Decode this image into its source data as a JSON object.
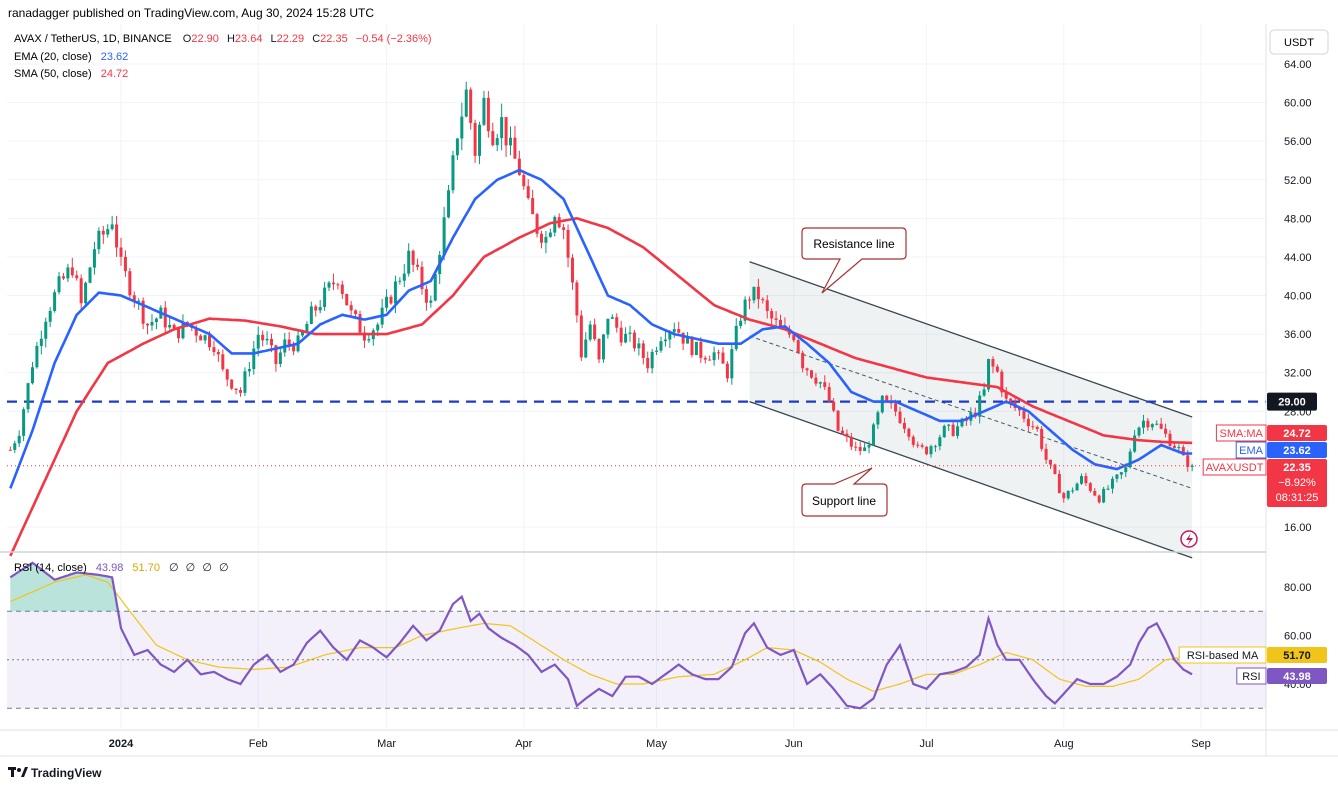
{
  "header": {
    "published": "ranadagger published on TradingView.com, Aug 30, 2024 15:28 UTC",
    "symbol": "AVAX / TetherUS, 1D, BINANCE",
    "ohlc": [
      {
        "k": "O",
        "v": "22.90"
      },
      {
        "k": "H",
        "v": "23.64"
      },
      {
        "k": "L",
        "v": "22.29"
      },
      {
        "k": "C",
        "v": "22.35"
      }
    ],
    "change": "−0.54 (−2.36%)",
    "ema_label": "EMA (20, close)",
    "ema_value": "23.62",
    "sma_label": "SMA (50, close)",
    "sma_value": "24.72",
    "currency": "USDT"
  },
  "rsi_legend": {
    "label": "RSI (14, close)",
    "value": "43.98",
    "ma_value": "51.70",
    "extras": [
      "∅",
      "∅",
      "∅",
      "∅"
    ]
  },
  "annotations": {
    "resistance": "Resistance line",
    "support": "Support line"
  },
  "price_tags": [
    {
      "label": "SMA:MA",
      "value": "24.72",
      "color": "#f23645"
    },
    {
      "label": "EMA",
      "value": "23.62",
      "color": "#2962ff"
    },
    {
      "label": "AVAXUSDT",
      "value": "22.35",
      "color": "#f23645",
      "extra1": "−8.92%",
      "extra2": "08:31:25"
    }
  ],
  "level_tag": {
    "value": "29.00",
    "color": "#131722"
  },
  "rsi_tags": [
    {
      "label": "RSI-based MA",
      "value": "51.70"
    },
    {
      "label": "RSI",
      "value": "43.98"
    }
  ],
  "footer": {
    "brand": "TradingView"
  },
  "colors": {
    "up": "#089981",
    "down": "#f23645",
    "ema": "#2962ff",
    "sma": "#f23645",
    "rsi": "#7e57c2",
    "rsi_ma": "#f0c419",
    "level": "#1e3ac8",
    "channel": "#37474f"
  },
  "chart_data": {
    "type": "candlestick",
    "symbol": "AVAXUSDT",
    "price_axis": {
      "ticks": [
        64,
        60,
        56,
        52,
        48,
        44,
        40,
        36,
        32,
        28,
        16
      ],
      "tick_labels": [
        "64.00",
        "60.00",
        "56.00",
        "52.00",
        "48.00",
        "44.00",
        "40.00",
        "36.00",
        "32.00",
        "28.00",
        "16.00"
      ],
      "range": [
        13,
        66
      ]
    },
    "time_axis": {
      "labels": [
        "2024",
        "Feb",
        "Mar",
        "Apr",
        "May",
        "Jun",
        "Jul",
        "Aug",
        "Sep"
      ],
      "label_day_index": [
        0,
        31,
        60,
        91,
        121,
        152,
        182,
        213,
        244
      ],
      "first_day_index": -25,
      "last_day_index": 272,
      "last_candle_day_index": 242
    },
    "candles_approx_close_keypoints": [
      [
        -25,
        24
      ],
      [
        -23,
        26
      ],
      [
        -20,
        33
      ],
      [
        -17,
        38
      ],
      [
        -14,
        41
      ],
      [
        -11,
        43
      ],
      [
        -9,
        39
      ],
      [
        -6,
        45
      ],
      [
        -3,
        47
      ],
      [
        -2,
        48
      ],
      [
        0,
        43
      ],
      [
        3,
        40
      ],
      [
        6,
        37
      ],
      [
        9,
        38
      ],
      [
        12,
        36
      ],
      [
        15,
        37
      ],
      [
        18,
        36
      ],
      [
        21,
        35
      ],
      [
        23,
        32
      ],
      [
        25,
        31
      ],
      [
        27,
        30
      ],
      [
        29,
        33
      ],
      [
        31,
        36
      ],
      [
        33,
        35
      ],
      [
        35,
        33
      ],
      [
        37,
        35
      ],
      [
        40,
        35
      ],
      [
        43,
        38
      ],
      [
        46,
        40
      ],
      [
        49,
        42
      ],
      [
        52,
        38
      ],
      [
        55,
        36
      ],
      [
        58,
        37
      ],
      [
        62,
        41
      ],
      [
        65,
        44
      ],
      [
        68,
        41
      ],
      [
        70,
        39
      ],
      [
        72,
        45
      ],
      [
        74,
        50
      ],
      [
        76,
        57
      ],
      [
        78,
        61
      ],
      [
        80,
        55
      ],
      [
        82,
        60
      ],
      [
        84,
        57
      ],
      [
        86,
        58
      ],
      [
        88,
        55
      ],
      [
        90,
        53
      ],
      [
        92,
        49
      ],
      [
        94,
        47
      ],
      [
        96,
        46
      ],
      [
        98,
        49
      ],
      [
        100,
        47
      ],
      [
        101,
        44
      ],
      [
        103,
        38
      ],
      [
        104,
        34
      ],
      [
        106,
        37
      ],
      [
        108,
        33
      ],
      [
        110,
        38
      ],
      [
        113,
        36
      ],
      [
        116,
        35
      ],
      [
        119,
        33
      ],
      [
        122,
        36
      ],
      [
        125,
        37
      ],
      [
        128,
        35
      ],
      [
        131,
        34
      ],
      [
        134,
        34
      ],
      [
        137,
        32
      ],
      [
        140,
        38
      ],
      [
        142,
        40
      ],
      [
        144,
        40
      ],
      [
        146,
        38
      ],
      [
        148,
        37
      ],
      [
        150,
        36
      ],
      [
        152,
        36
      ],
      [
        154,
        33
      ],
      [
        156,
        32
      ],
      [
        158,
        31
      ],
      [
        160,
        29
      ],
      [
        162,
        26
      ],
      [
        164,
        25
      ],
      [
        166,
        24
      ],
      [
        168,
        24
      ],
      [
        170,
        26
      ],
      [
        172,
        29
      ],
      [
        175,
        28
      ],
      [
        178,
        26
      ],
      [
        180,
        24
      ],
      [
        182,
        24
      ],
      [
        184,
        25
      ],
      [
        186,
        26
      ],
      [
        188,
        26
      ],
      [
        191,
        27
      ],
      [
        193,
        28
      ],
      [
        195,
        30
      ],
      [
        196,
        33
      ],
      [
        198,
        32
      ],
      [
        200,
        29
      ],
      [
        203,
        28
      ],
      [
        205,
        27
      ],
      [
        207,
        26
      ],
      [
        209,
        23
      ],
      [
        211,
        21
      ],
      [
        213,
        19
      ],
      [
        215,
        20
      ],
      [
        217,
        21
      ],
      [
        219,
        20
      ],
      [
        221,
        19
      ],
      [
        223,
        20
      ],
      [
        225,
        21
      ],
      [
        227,
        22
      ],
      [
        229,
        26
      ],
      [
        231,
        27
      ],
      [
        233,
        27
      ],
      [
        235,
        26
      ],
      [
        237,
        25
      ],
      [
        239,
        24
      ],
      [
        240,
        23
      ],
      [
        242,
        22.35
      ]
    ],
    "ema20_keypoints": [
      [
        -25,
        20
      ],
      [
        -20,
        26
      ],
      [
        -15,
        33
      ],
      [
        -10,
        38
      ],
      [
        -5,
        40.3
      ],
      [
        0,
        40
      ],
      [
        5,
        39
      ],
      [
        10,
        38
      ],
      [
        15,
        37
      ],
      [
        20,
        36
      ],
      [
        25,
        34
      ],
      [
        30,
        34
      ],
      [
        35,
        34.5
      ],
      [
        40,
        35
      ],
      [
        45,
        37
      ],
      [
        50,
        38
      ],
      [
        55,
        37.5
      ],
      [
        60,
        38
      ],
      [
        65,
        40.5
      ],
      [
        70,
        41.5
      ],
      [
        75,
        46
      ],
      [
        80,
        50
      ],
      [
        85,
        52
      ],
      [
        90,
        53
      ],
      [
        95,
        52
      ],
      [
        100,
        50
      ],
      [
        105,
        45
      ],
      [
        110,
        40
      ],
      [
        115,
        39
      ],
      [
        120,
        37
      ],
      [
        125,
        36
      ],
      [
        130,
        35.5
      ],
      [
        135,
        35
      ],
      [
        140,
        35
      ],
      [
        145,
        36.5
      ],
      [
        150,
        36.8
      ],
      [
        155,
        35
      ],
      [
        160,
        33
      ],
      [
        165,
        30
      ],
      [
        170,
        29
      ],
      [
        175,
        29
      ],
      [
        180,
        28
      ],
      [
        185,
        27
      ],
      [
        190,
        27
      ],
      [
        195,
        28
      ],
      [
        200,
        29
      ],
      [
        205,
        28
      ],
      [
        210,
        26
      ],
      [
        215,
        24
      ],
      [
        220,
        22.5
      ],
      [
        225,
        22
      ],
      [
        230,
        23
      ],
      [
        235,
        24.5
      ],
      [
        240,
        23.62
      ]
    ],
    "sma50_keypoints": [
      [
        -25,
        13
      ],
      [
        -18,
        20
      ],
      [
        -10,
        28
      ],
      [
        -3,
        33
      ],
      [
        5,
        35
      ],
      [
        12,
        36.5
      ],
      [
        20,
        37.6
      ],
      [
        28,
        37.4
      ],
      [
        36,
        36.8
      ],
      [
        44,
        36
      ],
      [
        52,
        36
      ],
      [
        60,
        36
      ],
      [
        68,
        37
      ],
      [
        75,
        40
      ],
      [
        82,
        44
      ],
      [
        90,
        46
      ],
      [
        97,
        47.5
      ],
      [
        103,
        48
      ],
      [
        110,
        47
      ],
      [
        118,
        45
      ],
      [
        126,
        42
      ],
      [
        134,
        39
      ],
      [
        142,
        37.5
      ],
      [
        150,
        36.5
      ],
      [
        158,
        35
      ],
      [
        166,
        33.5
      ],
      [
        174,
        32.5
      ],
      [
        182,
        31.5
      ],
      [
        190,
        31
      ],
      [
        198,
        30.5
      ],
      [
        206,
        28.5
      ],
      [
        214,
        27
      ],
      [
        222,
        25.5
      ],
      [
        230,
        25
      ],
      [
        236,
        24.8
      ],
      [
        242,
        24.72
      ]
    ],
    "horizontal_level": 29.0,
    "channel": {
      "resistance": {
        "from": [
          142,
          43.5
        ],
        "to": [
          242,
          27.4
        ]
      },
      "support": {
        "from": [
          142,
          29.0
        ],
        "to": [
          242,
          12.8
        ]
      },
      "midline": {
        "from": [
          142,
          35.8
        ],
        "to": [
          242,
          20.0
        ]
      }
    },
    "rsi": {
      "levels": [
        70,
        50,
        30
      ],
      "tick_labels": [
        "80.00",
        "60.00",
        "40.00"
      ],
      "ticks": [
        80,
        60,
        40
      ],
      "range": [
        25,
        92
      ],
      "rsi_keypoints": [
        [
          -25,
          84
        ],
        [
          -20,
          90
        ],
        [
          -15,
          83
        ],
        [
          -10,
          86
        ],
        [
          -5,
          85
        ],
        [
          -2,
          84
        ],
        [
          0,
          63
        ],
        [
          3,
          52
        ],
        [
          6,
          54
        ],
        [
          9,
          48
        ],
        [
          12,
          45
        ],
        [
          15,
          50
        ],
        [
          18,
          44
        ],
        [
          21,
          45
        ],
        [
          24,
          42
        ],
        [
          27,
          40
        ],
        [
          30,
          48
        ],
        [
          33,
          52
        ],
        [
          36,
          45
        ],
        [
          39,
          48
        ],
        [
          42,
          57
        ],
        [
          45,
          62
        ],
        [
          48,
          55
        ],
        [
          51,
          50
        ],
        [
          54,
          58
        ],
        [
          57,
          55
        ],
        [
          60,
          51
        ],
        [
          63,
          57
        ],
        [
          66,
          64
        ],
        [
          69,
          58
        ],
        [
          72,
          62
        ],
        [
          75,
          73
        ],
        [
          77,
          76
        ],
        [
          79,
          66
        ],
        [
          81,
          69
        ],
        [
          83,
          63
        ],
        [
          86,
          59
        ],
        [
          89,
          56
        ],
        [
          92,
          52
        ],
        [
          95,
          45
        ],
        [
          98,
          48
        ],
        [
          101,
          42
        ],
        [
          103,
          31
        ],
        [
          105,
          34
        ],
        [
          108,
          38
        ],
        [
          111,
          35
        ],
        [
          114,
          43
        ],
        [
          117,
          43
        ],
        [
          120,
          40
        ],
        [
          123,
          44
        ],
        [
          126,
          48
        ],
        [
          129,
          44
        ],
        [
          132,
          42
        ],
        [
          135,
          42
        ],
        [
          138,
          47
        ],
        [
          141,
          61
        ],
        [
          143,
          65
        ],
        [
          146,
          55
        ],
        [
          149,
          52
        ],
        [
          152,
          54
        ],
        [
          155,
          40
        ],
        [
          158,
          44
        ],
        [
          161,
          38
        ],
        [
          164,
          31
        ],
        [
          167,
          30
        ],
        [
          170,
          34
        ],
        [
          173,
          48
        ],
        [
          176,
          56
        ],
        [
          179,
          40
        ],
        [
          182,
          38
        ],
        [
          185,
          44
        ],
        [
          188,
          45
        ],
        [
          191,
          47
        ],
        [
          194,
          52
        ],
        [
          196,
          67
        ],
        [
          198,
          56
        ],
        [
          200,
          50
        ],
        [
          203,
          50
        ],
        [
          206,
          42
        ],
        [
          209,
          35
        ],
        [
          211,
          32
        ],
        [
          213,
          36
        ],
        [
          216,
          42
        ],
        [
          219,
          40
        ],
        [
          222,
          40
        ],
        [
          225,
          43
        ],
        [
          228,
          48
        ],
        [
          230,
          57
        ],
        [
          232,
          63
        ],
        [
          234,
          65
        ],
        [
          236,
          58
        ],
        [
          238,
          50
        ],
        [
          240,
          46
        ],
        [
          242,
          43.98
        ]
      ],
      "rsi_ma_keypoints": [
        [
          -25,
          74
        ],
        [
          -15,
          82
        ],
        [
          -8,
          85
        ],
        [
          -3,
          82
        ],
        [
          2,
          70
        ],
        [
          8,
          56
        ],
        [
          15,
          50
        ],
        [
          22,
          47
        ],
        [
          30,
          46
        ],
        [
          38,
          47
        ],
        [
          46,
          52
        ],
        [
          54,
          55
        ],
        [
          62,
          55
        ],
        [
          68,
          60
        ],
        [
          76,
          63
        ],
        [
          82,
          65
        ],
        [
          88,
          64
        ],
        [
          94,
          57
        ],
        [
          100,
          50
        ],
        [
          106,
          44
        ],
        [
          112,
          40
        ],
        [
          118,
          40
        ],
        [
          126,
          43
        ],
        [
          134,
          44
        ],
        [
          141,
          50
        ],
        [
          146,
          55
        ],
        [
          152,
          54
        ],
        [
          158,
          49
        ],
        [
          164,
          42
        ],
        [
          170,
          37
        ],
        [
          176,
          40
        ],
        [
          182,
          44
        ],
        [
          188,
          44
        ],
        [
          194,
          48
        ],
        [
          200,
          53
        ],
        [
          206,
          50
        ],
        [
          212,
          42
        ],
        [
          218,
          39
        ],
        [
          224,
          39
        ],
        [
          230,
          42
        ],
        [
          236,
          50
        ],
        [
          242,
          51.7
        ]
      ]
    }
  }
}
